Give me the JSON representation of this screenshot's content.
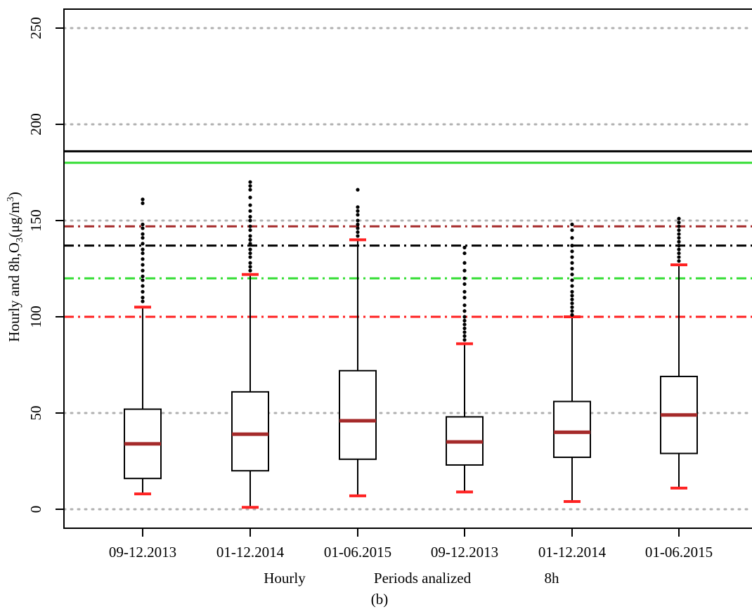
{
  "chart_data": {
    "type": "box",
    "title": "",
    "caption": "(b)",
    "ylabel": "Hourly and 8h,O3(μg/m3)",
    "ylabel_parts": {
      "main": "Hourly and 8h,O",
      "sub": "3",
      "unit_open": "(μg/m",
      "sup": "3",
      "unit_close": ")"
    },
    "xlabel": "Periods analized",
    "group_labels": [
      "Hourly",
      "8h"
    ],
    "ylim": [
      -10,
      260
    ],
    "yticks": [
      0,
      50,
      100,
      150,
      200,
      250
    ],
    "grid_y": [
      0,
      50,
      150,
      200,
      250
    ],
    "categories": [
      "09-12.2013",
      "01-12.2014",
      "01-06.2015",
      "09-12.2013",
      "01-12.2014",
      "01-06.2015"
    ],
    "boxes": [
      {
        "label": "09-12.2013",
        "group": "Hourly",
        "lower_whisker": 8,
        "q1": 16,
        "median": 34,
        "q3": 52,
        "upper_whisker": 105,
        "outliers": [
          108,
          110,
          113,
          116,
          119,
          121,
          124,
          127,
          130,
          133,
          135,
          138,
          141,
          143,
          146,
          148,
          159,
          161
        ]
      },
      {
        "label": "01-12.2014",
        "group": "Hourly",
        "lower_whisker": 1,
        "q1": 20,
        "median": 39,
        "q3": 61,
        "upper_whisker": 122,
        "outliers": [
          124,
          126,
          128,
          131,
          133,
          135,
          138,
          140,
          142,
          145,
          147,
          150,
          152,
          155,
          158,
          162,
          166,
          168,
          170
        ]
      },
      {
        "label": "01-06.2015",
        "group": "Hourly",
        "lower_whisker": 7,
        "q1": 26,
        "median": 46,
        "q3": 72,
        "upper_whisker": 140,
        "outliers": [
          142,
          144,
          146,
          148,
          150,
          153,
          155,
          157,
          166
        ]
      },
      {
        "label": "09-12.2013",
        "group": "8h",
        "lower_whisker": 9,
        "q1": 23,
        "median": 35,
        "q3": 48,
        "upper_whisker": 86,
        "outliers": [
          88,
          90,
          92,
          94,
          96,
          98,
          100,
          103,
          106,
          110,
          113,
          117,
          120,
          124,
          128,
          133,
          136
        ]
      },
      {
        "label": "01-12.2014",
        "group": "8h",
        "lower_whisker": 4,
        "q1": 27,
        "median": 40,
        "q3": 56,
        "upper_whisker": 100,
        "outliers": [
          101,
          103,
          105,
          107,
          109,
          111,
          113,
          116,
          119,
          122,
          125,
          128,
          131,
          134,
          137,
          141,
          145,
          148
        ]
      },
      {
        "label": "01-06.2015",
        "group": "8h",
        "lower_whisker": 11,
        "q1": 29,
        "median": 49,
        "q3": 69,
        "upper_whisker": 127,
        "outliers": [
          129,
          131,
          133,
          135,
          137,
          139,
          141,
          143,
          145,
          147,
          149,
          151
        ]
      }
    ],
    "reference_lines": [
      {
        "value": 186,
        "style": "solid",
        "color": "#000000"
      },
      {
        "value": 180,
        "style": "solid",
        "color": "#33dd33"
      },
      {
        "value": 147,
        "style": "dashdot",
        "color": "#a52a2a"
      },
      {
        "value": 137,
        "style": "dashdot",
        "color": "#000000"
      },
      {
        "value": 120,
        "style": "dashdot",
        "color": "#33dd33"
      },
      {
        "value": 100,
        "style": "dashdot",
        "color": "#ff2222"
      }
    ],
    "colors": {
      "median": "#a52a2a",
      "whisker_cap": "#ff2222",
      "box_stroke": "#000000",
      "outlier": "#000000",
      "grid": "#b0b0b0"
    }
  }
}
